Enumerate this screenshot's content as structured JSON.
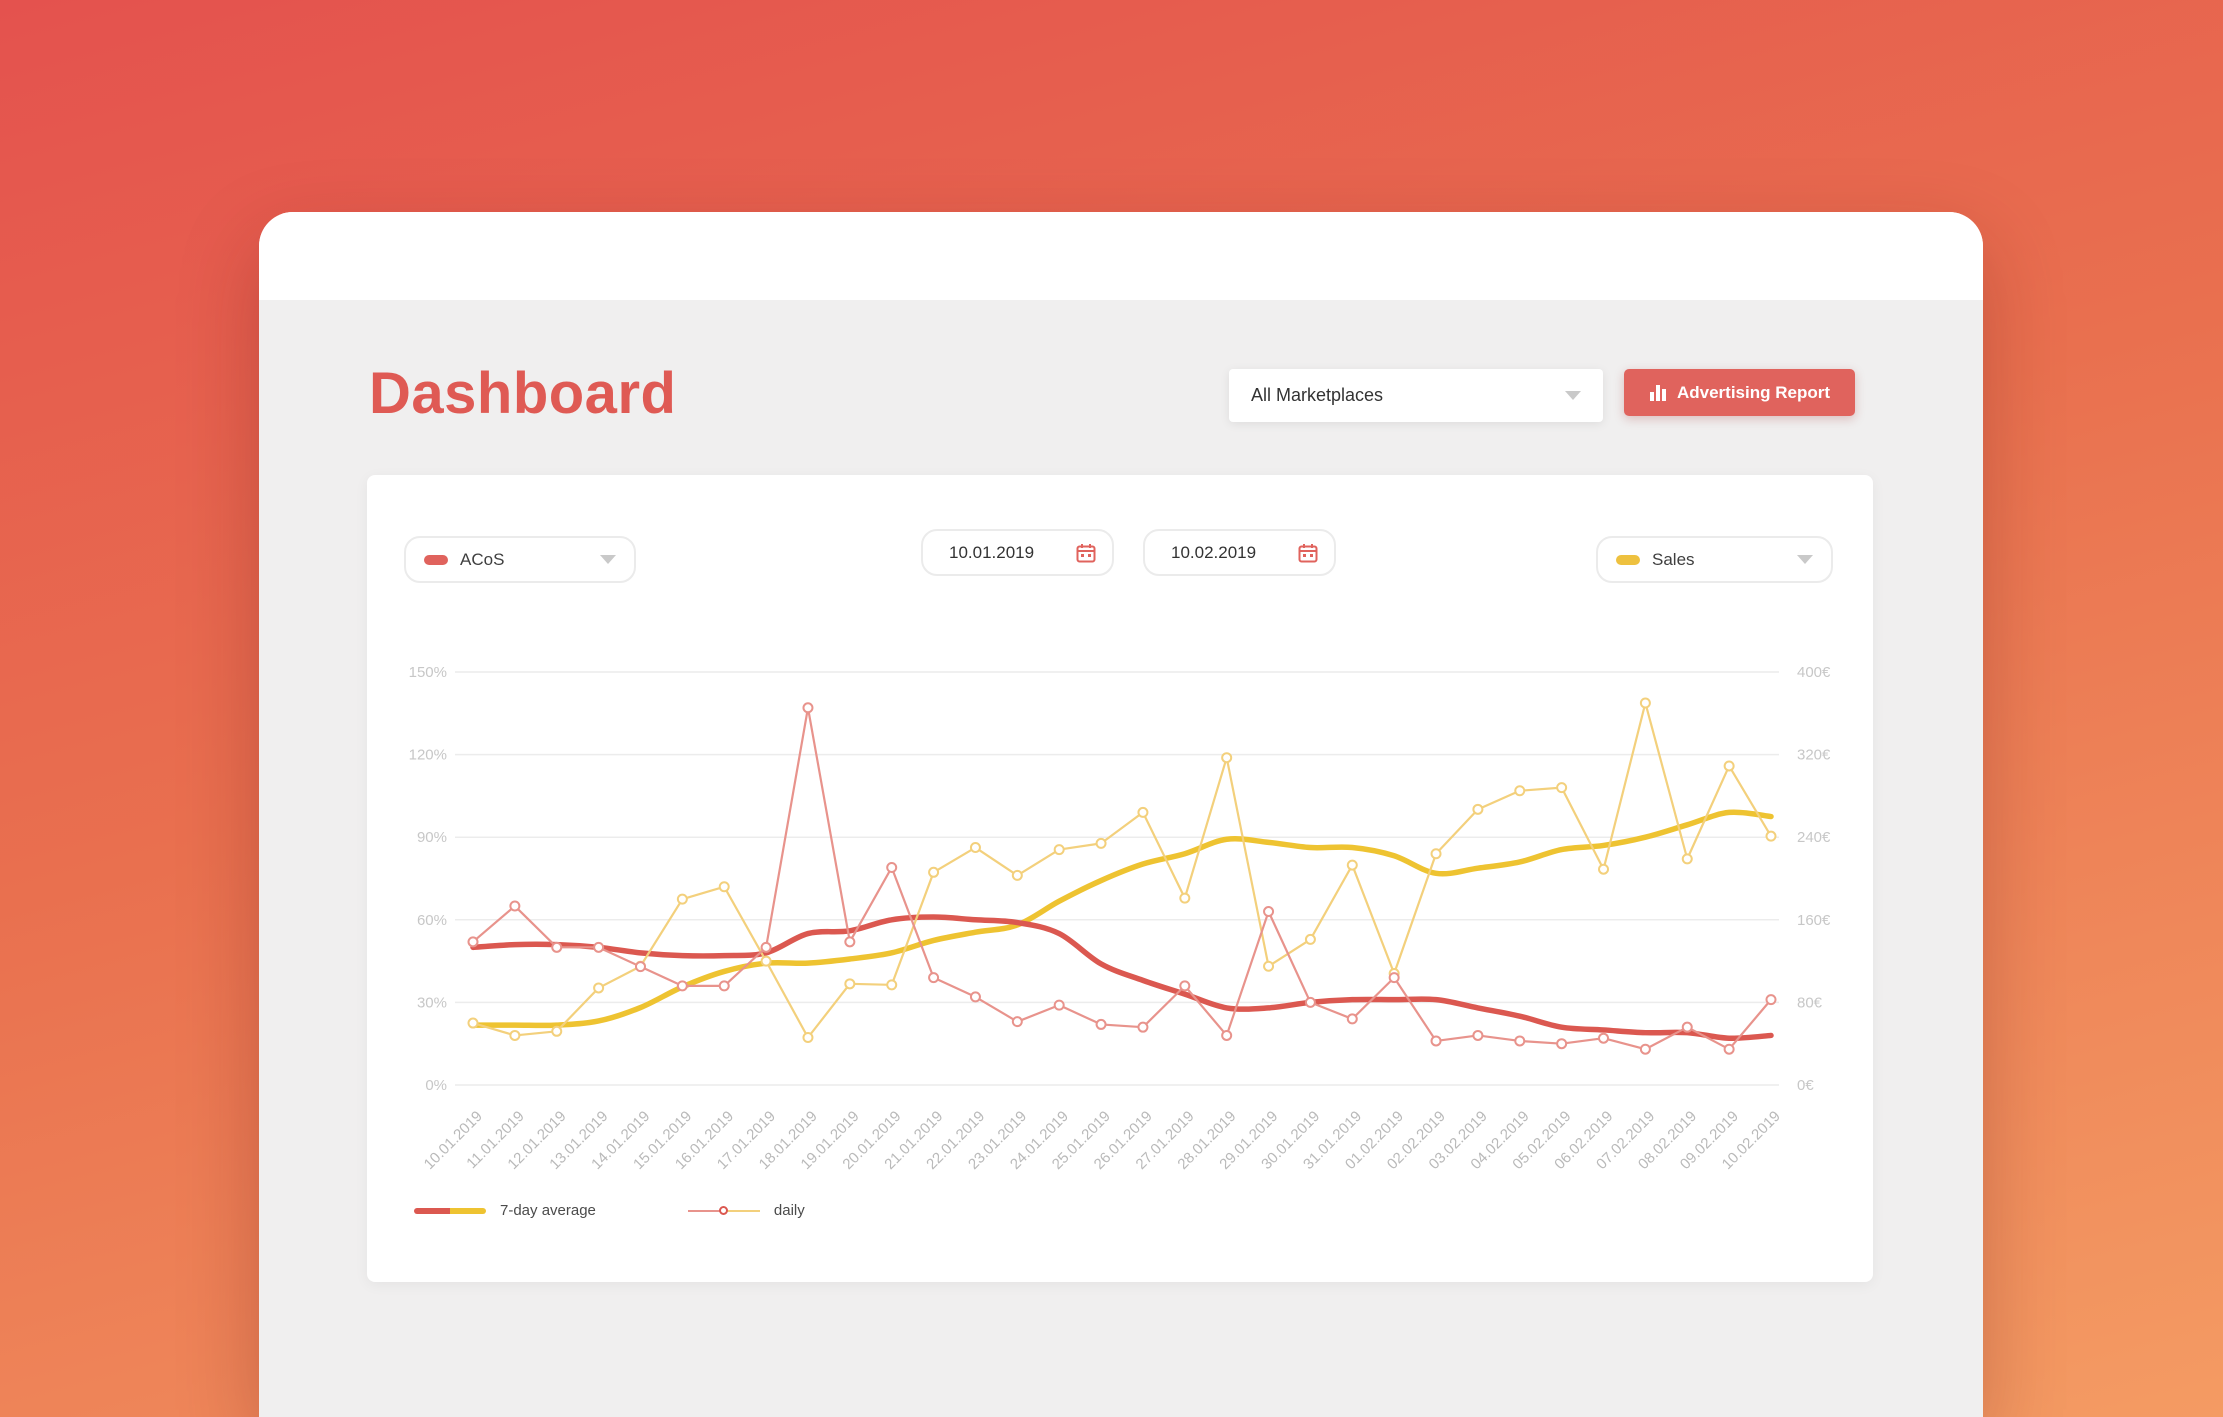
{
  "header": {
    "title": "Dashboard",
    "marketplace_selector": {
      "value": "All Marketplaces"
    },
    "report_button": {
      "label": "Advertising Report"
    }
  },
  "chart_card": {
    "left_metric": {
      "label": "ACoS",
      "color": "#e0635d"
    },
    "right_metric": {
      "label": "Sales",
      "color": "#eec13f"
    },
    "date_from": {
      "value": "10.01.2019"
    },
    "date_to": {
      "value": "10.02.2019"
    },
    "legend": [
      {
        "label": "7-day average"
      },
      {
        "label": "daily"
      }
    ]
  },
  "colors": {
    "accent_red": "#e0635d",
    "accent_yellow": "#eec13f",
    "avg_red": "#db5850",
    "avg_yellow": "#eec331",
    "daily_red": "#e8938c",
    "daily_yellow": "#f3d07c",
    "title": "#df5a54",
    "gridline": "#ececec"
  },
  "chart_data": {
    "type": "line",
    "x": [
      "10.01.2019",
      "11.01.2019",
      "12.01.2019",
      "13.01.2019",
      "14.01.2019",
      "15.01.2019",
      "16.01.2019",
      "17.01.2019",
      "18.01.2019",
      "19.01.2019",
      "20.01.2019",
      "21.01.2019",
      "22.01.2019",
      "23.01.2019",
      "24.01.2019",
      "25.01.2019",
      "26.01.2019",
      "27.01.2019",
      "28.01.2019",
      "29.01.2019",
      "30.01.2019",
      "31.01.2019",
      "01.02.2019",
      "02.02.2019",
      "03.02.2019",
      "04.02.2019",
      "05.02.2019",
      "06.02.2019",
      "07.02.2019",
      "08.02.2019",
      "09.02.2019",
      "10.02.2019"
    ],
    "left_axis": {
      "label": "ACoS",
      "unit": "%",
      "range": [
        0,
        150
      ],
      "tick_values": [
        0,
        30,
        60,
        90,
        120,
        150
      ],
      "ticks": [
        "0%",
        "30%",
        "60%",
        "90%",
        "120%",
        "150%"
      ]
    },
    "right_axis": {
      "label": "Sales",
      "unit": "€",
      "range": [
        0,
        400
      ],
      "tick_values": [
        0,
        80,
        160,
        240,
        320,
        400
      ],
      "ticks": [
        "0€",
        "80€",
        "160€",
        "240€",
        "320€",
        "400€"
      ]
    },
    "grid": true,
    "legend_position": "bottom-left",
    "series": [
      {
        "name": "Sales 7-day average",
        "axis": "right",
        "style": "average",
        "color": "#eec331",
        "values": [
          58,
          58,
          58,
          62,
          75,
          95,
          110,
          118,
          118,
          122,
          128,
          140,
          148,
          155,
          178,
          198,
          214,
          224,
          238,
          235,
          230,
          230,
          222,
          205,
          210,
          216,
          228,
          232,
          240,
          252,
          264,
          260
        ]
      },
      {
        "name": "ACoS 7-day average",
        "axis": "left",
        "style": "average",
        "color": "#db5850",
        "values": [
          50,
          51,
          51,
          50,
          48,
          47,
          47,
          48,
          55,
          56,
          60,
          61,
          60,
          59,
          55,
          44,
          38,
          33,
          28,
          28,
          30,
          31,
          31,
          31,
          28,
          25,
          21,
          20,
          19,
          19,
          17,
          18
        ]
      },
      {
        "name": "Sales daily",
        "axis": "right",
        "style": "daily",
        "color": "#f3d07c",
        "values": [
          60,
          48,
          52,
          94,
          115,
          180,
          192,
          120,
          46,
          98,
          97,
          206,
          230,
          203,
          228,
          234,
          264,
          181,
          317,
          115,
          141,
          213,
          108,
          224,
          267,
          285,
          288,
          209,
          370,
          219,
          309,
          241
        ]
      },
      {
        "name": "ACoS daily",
        "axis": "left",
        "style": "daily",
        "color": "#e8938c",
        "values": [
          52,
          65,
          50,
          50,
          43,
          36,
          36,
          50,
          137,
          52,
          79,
          39,
          32,
          23,
          29,
          22,
          21,
          36,
          18,
          63,
          30,
          24,
          39,
          16,
          18,
          16,
          15,
          17,
          13,
          21,
          13,
          31
        ]
      }
    ]
  }
}
